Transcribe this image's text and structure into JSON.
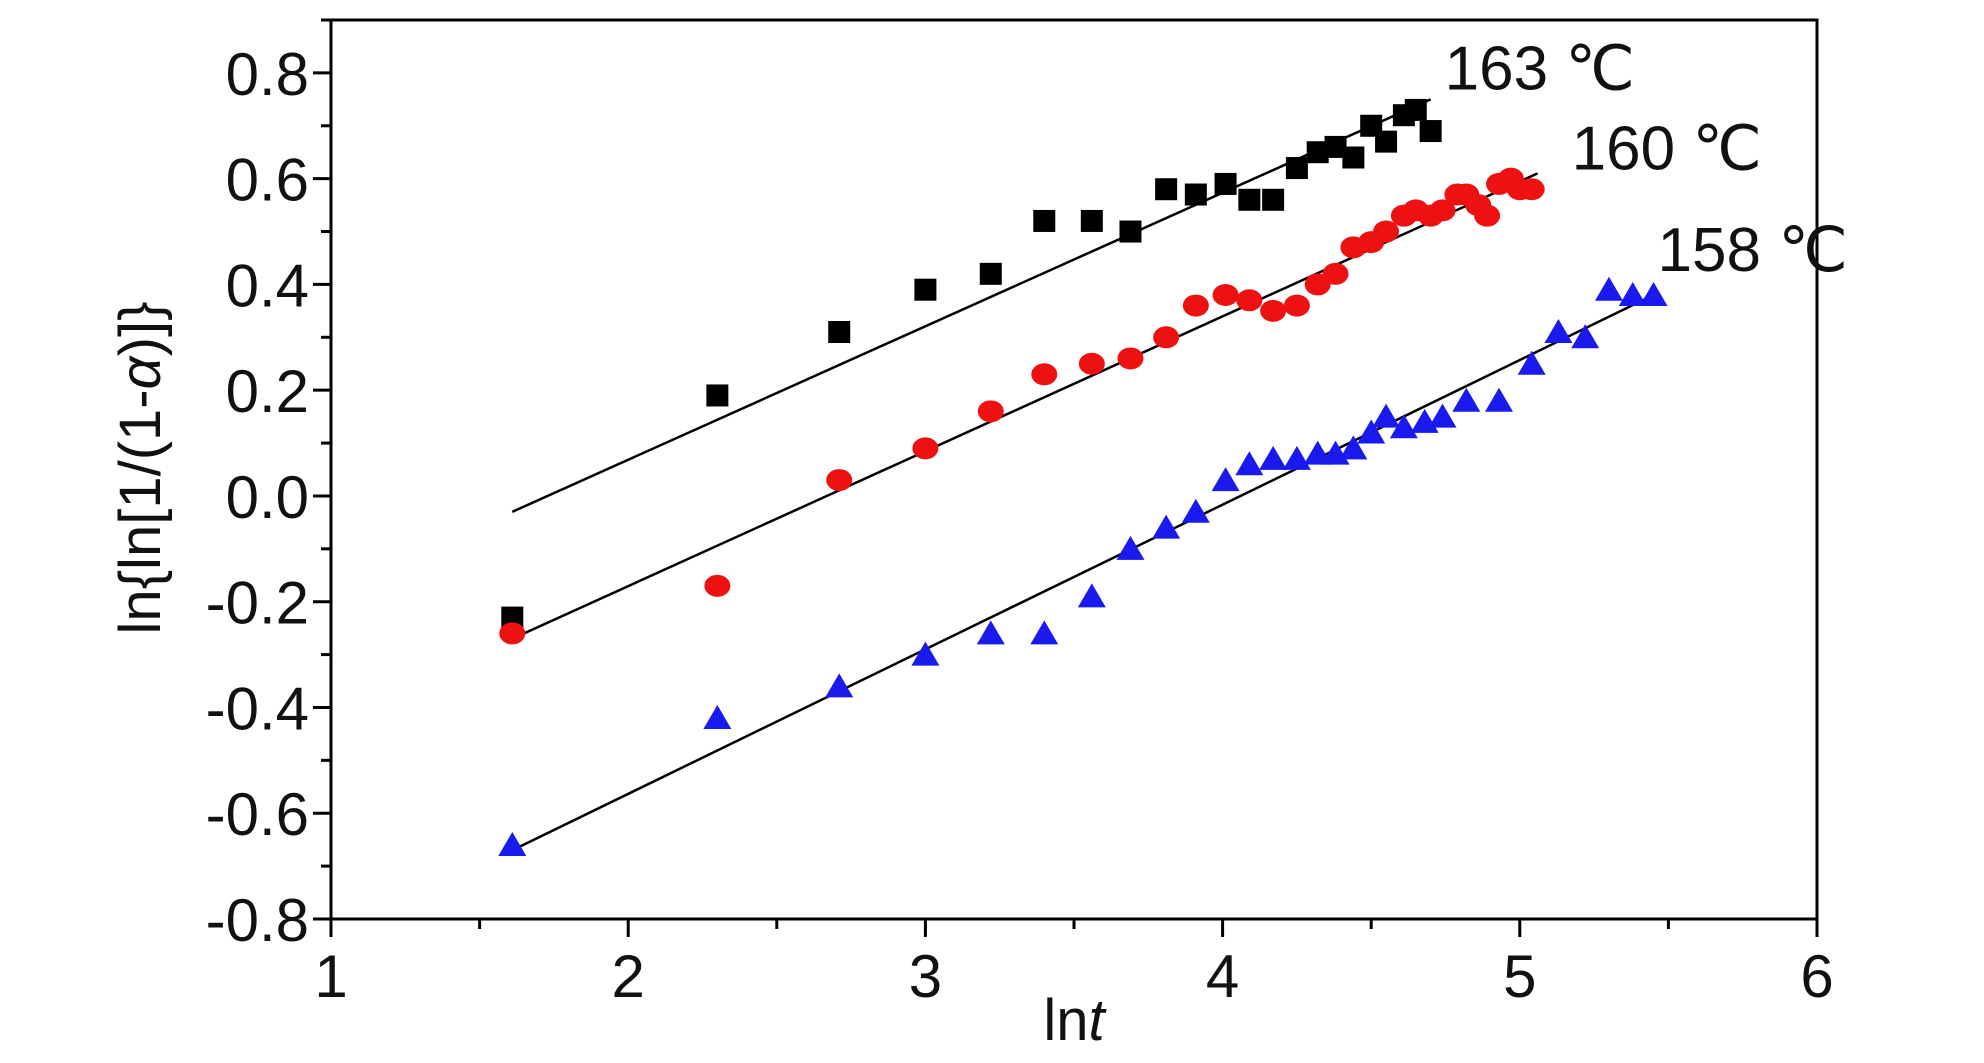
{
  "chart_data": {
    "type": "scatter",
    "title": "",
    "xlabel": {
      "prefix": "ln",
      "italic": "t"
    },
    "ylabel": {
      "prefix": "ln{ln[1/(1-",
      "italic": "α",
      "suffix": ")]}"
    },
    "xlim": [
      1,
      6
    ],
    "ylim": [
      -0.8,
      0.9
    ],
    "x_ticks": [
      1,
      2,
      3,
      4,
      5,
      6
    ],
    "x_tick_labels": [
      "1",
      "2",
      "3",
      "4",
      "5",
      "6"
    ],
    "y_ticks": [
      -0.8,
      -0.6,
      -0.4,
      -0.2,
      0.0,
      0.2,
      0.4,
      0.6,
      0.8
    ],
    "y_tick_labels": [
      "-0.8",
      "-0.6",
      "-0.4",
      "-0.2",
      "0.0",
      "0.2",
      "0.4",
      "0.6",
      "0.8"
    ],
    "grid": false,
    "legend": "inline labels at end of each fit line",
    "series": [
      {
        "name": "163 ℃",
        "marker": "square",
        "color": "#000000",
        "x": [
          1.61,
          2.3,
          2.71,
          3.0,
          3.22,
          3.4,
          3.56,
          3.69,
          3.81,
          3.91,
          4.01,
          4.09,
          4.17,
          4.25,
          4.32,
          4.38,
          4.44,
          4.5,
          4.55,
          4.61,
          4.65,
          4.7
        ],
        "y": [
          -0.23,
          0.19,
          0.31,
          0.39,
          0.42,
          0.52,
          0.52,
          0.5,
          0.58,
          0.57,
          0.59,
          0.56,
          0.56,
          0.62,
          0.65,
          0.66,
          0.64,
          0.7,
          0.67,
          0.72,
          0.73,
          0.69
        ],
        "fit": {
          "x": [
            1.61,
            4.7
          ],
          "y": [
            -0.03,
            0.75
          ]
        }
      },
      {
        "name": "160 ℃",
        "marker": "circle",
        "color": "#ee1111",
        "x": [
          1.61,
          2.3,
          2.71,
          3.0,
          3.22,
          3.4,
          3.56,
          3.69,
          3.81,
          3.91,
          4.01,
          4.09,
          4.17,
          4.25,
          4.32,
          4.38,
          4.44,
          4.5,
          4.55,
          4.61,
          4.65,
          4.7,
          4.74,
          4.79,
          4.82,
          4.86,
          4.89,
          4.93,
          4.97,
          5.0,
          5.04
        ],
        "y": [
          -0.26,
          -0.17,
          0.03,
          0.09,
          0.16,
          0.23,
          0.25,
          0.26,
          0.3,
          0.36,
          0.38,
          0.37,
          0.35,
          0.36,
          0.4,
          0.42,
          0.47,
          0.48,
          0.5,
          0.53,
          0.54,
          0.53,
          0.54,
          0.57,
          0.57,
          0.55,
          0.53,
          0.59,
          0.6,
          0.58,
          0.58
        ],
        "fit": {
          "x": [
            1.61,
            5.06
          ],
          "y": [
            -0.27,
            0.61
          ]
        }
      },
      {
        "name": "158 ℃",
        "marker": "triangle",
        "color": "#1a1aee",
        "x": [
          1.61,
          2.3,
          2.71,
          3.0,
          3.22,
          3.4,
          3.56,
          3.69,
          3.81,
          3.91,
          4.01,
          4.09,
          4.17,
          4.25,
          4.32,
          4.38,
          4.44,
          4.5,
          4.55,
          4.61,
          4.68,
          4.74,
          4.82,
          4.93,
          5.04,
          5.13,
          5.22,
          5.3,
          5.38,
          5.45
        ],
        "y": [
          -0.66,
          -0.42,
          -0.36,
          -0.3,
          -0.26,
          -0.26,
          -0.19,
          -0.1,
          -0.06,
          -0.03,
          0.03,
          0.06,
          0.07,
          0.07,
          0.08,
          0.08,
          0.09,
          0.12,
          0.15,
          0.13,
          0.14,
          0.15,
          0.18,
          0.18,
          0.25,
          0.31,
          0.3,
          0.39,
          0.38,
          0.38
        ],
        "fit": {
          "x": [
            1.61,
            5.45
          ],
          "y": [
            -0.67,
            0.38
          ]
        }
      }
    ]
  }
}
